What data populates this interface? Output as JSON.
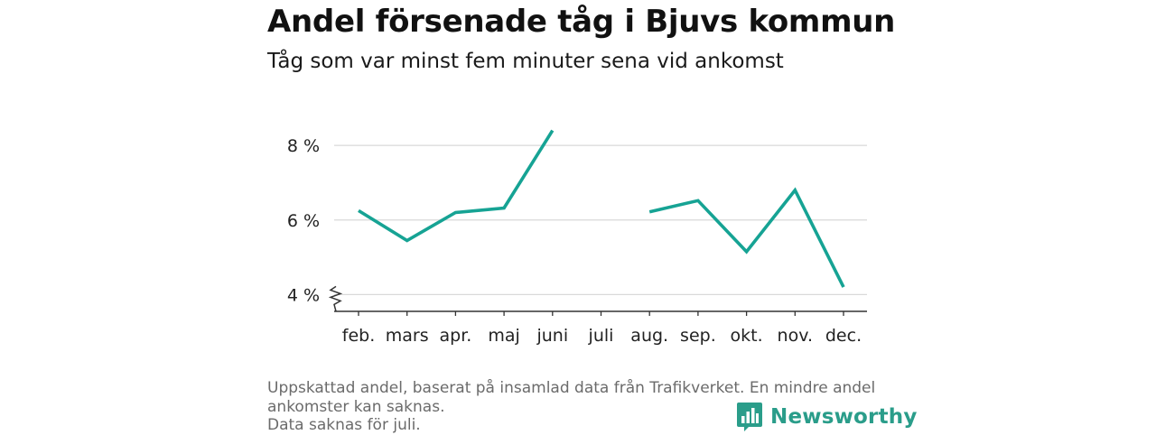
{
  "header": {
    "title": "Andel försenade tåg i Bjuvs kommun",
    "subtitle": "Tåg som var minst fem minuter sena vid ankomst"
  },
  "footer": {
    "note_line1": "Uppskattad andel, baserat på insamlad data från Trafikverket. En mindre andel",
    "note_line2": "ankomster kan saknas.",
    "note_line3": "Data saknas för juli.",
    "brand": "Newsworthy",
    "brand_color": "#2a9d8a"
  },
  "chart_data": {
    "type": "line",
    "categories": [
      "feb.",
      "mars",
      "apr.",
      "maj",
      "juni",
      "juli",
      "aug.",
      "sep.",
      "okt.",
      "nov.",
      "dec."
    ],
    "series": [
      {
        "values": [
          6.25,
          5.45,
          6.2,
          6.32,
          8.4,
          null,
          6.22,
          6.52,
          5.15,
          6.8,
          4.2
        ],
        "color": "#16a394"
      }
    ],
    "yticks": [
      4,
      6,
      8
    ],
    "ytick_labels": [
      "4 %",
      "6 %",
      "8 %"
    ],
    "ylim": [
      3.55,
      9.6
    ],
    "y_axis_break": true,
    "grid": true,
    "xlabel": "",
    "ylabel": ""
  }
}
